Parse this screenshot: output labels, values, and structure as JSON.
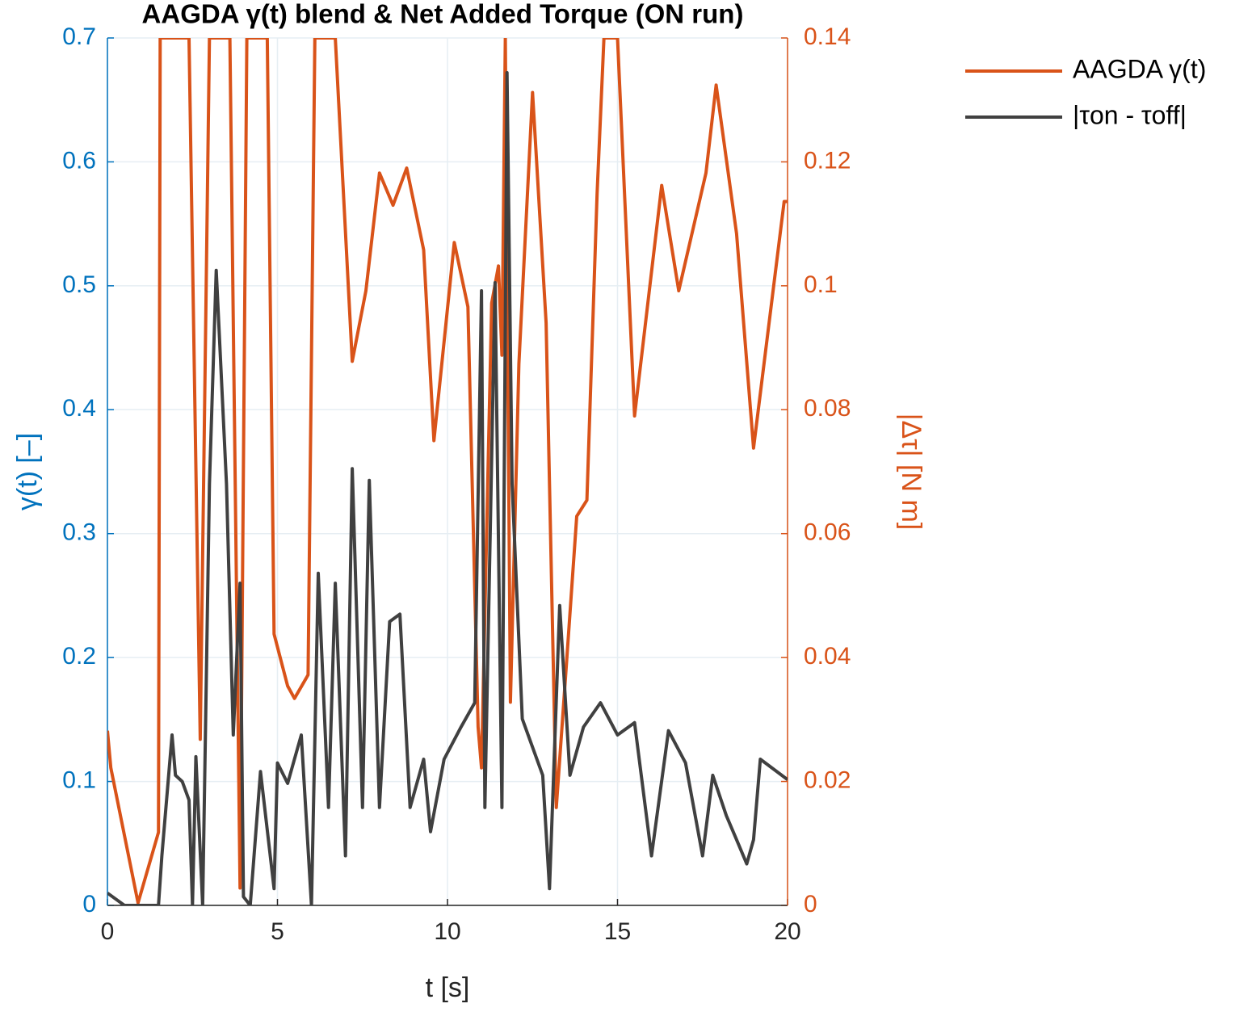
{
  "chart_data": {
    "type": "line",
    "title": "AAGDA γ(t) blend & Net Added Torque (ON run)",
    "xlabel": "t [s]",
    "ylabel": "γ(t) [–]",
    "y2label": "|Δτ| [N m]",
    "xlim": [
      0,
      20
    ],
    "xticks": [
      0,
      5,
      10,
      15,
      20
    ],
    "ylim": [
      0,
      0.7
    ],
    "yticks": [
      0,
      0.1,
      0.2,
      0.3,
      0.4,
      0.5,
      0.6,
      0.7
    ],
    "y2lim": [
      0,
      0.14
    ],
    "y2ticks": [
      0,
      0.02,
      0.04,
      0.06,
      0.08,
      0.1,
      0.12,
      0.14
    ],
    "ycolor": "#0072bd",
    "y2color": "#d95319",
    "grid": true,
    "legend": "outside-top-right",
    "series": [
      {
        "name": "AAGDA γ(t)",
        "color": "#d95319",
        "axis": "y",
        "x": [
          0,
          0.1,
          0.9,
          1.5,
          1.55,
          2.4,
          2.73,
          3.0,
          3.6,
          3.9,
          4.1,
          4.7,
          4.9,
          5.3,
          5.5,
          5.9,
          6.1,
          6.7,
          7.2,
          7.6,
          8.0,
          8.4,
          8.8,
          9.3,
          9.6,
          10.2,
          10.6,
          10.9,
          11.0,
          11.3,
          11.5,
          11.6,
          11.7,
          11.85,
          12.1,
          12.5,
          12.9,
          13.2,
          13.5,
          13.8,
          14.1,
          14.4,
          14.6,
          15.0,
          15.5,
          16.3,
          16.8,
          17.6,
          17.9,
          18.5,
          19.0,
          19.9,
          20
        ],
        "values": [
          0.141,
          0.111,
          0.002,
          0.059,
          0.7,
          0.7,
          0.134,
          0.7,
          0.7,
          0.014,
          0.7,
          0.7,
          0.219,
          0.177,
          0.167,
          0.186,
          0.7,
          0.7,
          0.439,
          0.496,
          0.591,
          0.565,
          0.595,
          0.529,
          0.375,
          0.535,
          0.483,
          0.144,
          0.111,
          0.486,
          0.516,
          0.444,
          0.7,
          0.164,
          0.437,
          0.656,
          0.47,
          0.079,
          0.196,
          0.314,
          0.327,
          0.574,
          0.7,
          0.7,
          0.395,
          0.581,
          0.496,
          0.591,
          0.662,
          0.542,
          0.369,
          0.568,
          0.568
        ]
      },
      {
        "name": "|τon - τoff|",
        "color": "#404040",
        "axis": "y2",
        "x": [
          0,
          0.5,
          1.5,
          1.6,
          1.9,
          2.0,
          2.2,
          2.4,
          2.5,
          2.6,
          2.8,
          3.0,
          3.2,
          3.5,
          3.7,
          3.9,
          4.0,
          4.2,
          4.5,
          4.9,
          5.0,
          5.3,
          5.7,
          6.0,
          6.2,
          6.5,
          6.7,
          7.0,
          7.2,
          7.5,
          7.7,
          8.0,
          8.3,
          8.6,
          8.9,
          9.3,
          9.5,
          9.9,
          10.4,
          10.8,
          11.0,
          11.1,
          11.4,
          11.6,
          11.75,
          11.9,
          12.2,
          12.8,
          13.0,
          13.3,
          13.6,
          14.0,
          14.5,
          15.0,
          15.5,
          16.0,
          16.5,
          17.0,
          17.5,
          17.8,
          18.2,
          18.5,
          18.8,
          19.0,
          19.2,
          20
        ],
        "values": [
          0.002,
          0,
          0,
          0.008,
          0.0275,
          0.021,
          0.02,
          0.017,
          0,
          0.024,
          0,
          0.068,
          0.1025,
          0.068,
          0.0275,
          0.052,
          0.0014,
          0,
          0.0216,
          0.0027,
          0.023,
          0.0197,
          0.0275,
          0,
          0.0536,
          0.0158,
          0.052,
          0.008,
          0.0705,
          0.0158,
          0.0686,
          0.0158,
          0.0458,
          0.047,
          0.0158,
          0.0236,
          0.0119,
          0.0236,
          0.0288,
          0.0327,
          0.0992,
          0.0158,
          0.1005,
          0.0158,
          0.1344,
          0.068,
          0.0301,
          0.021,
          0.0027,
          0.0484,
          0.021,
          0.0288,
          0.0327,
          0.0275,
          0.0295,
          0.008,
          0.0282,
          0.023,
          0.008,
          0.021,
          0.0145,
          0.0106,
          0.0067,
          0.0106,
          0.0236,
          0.0203
        ]
      }
    ]
  }
}
